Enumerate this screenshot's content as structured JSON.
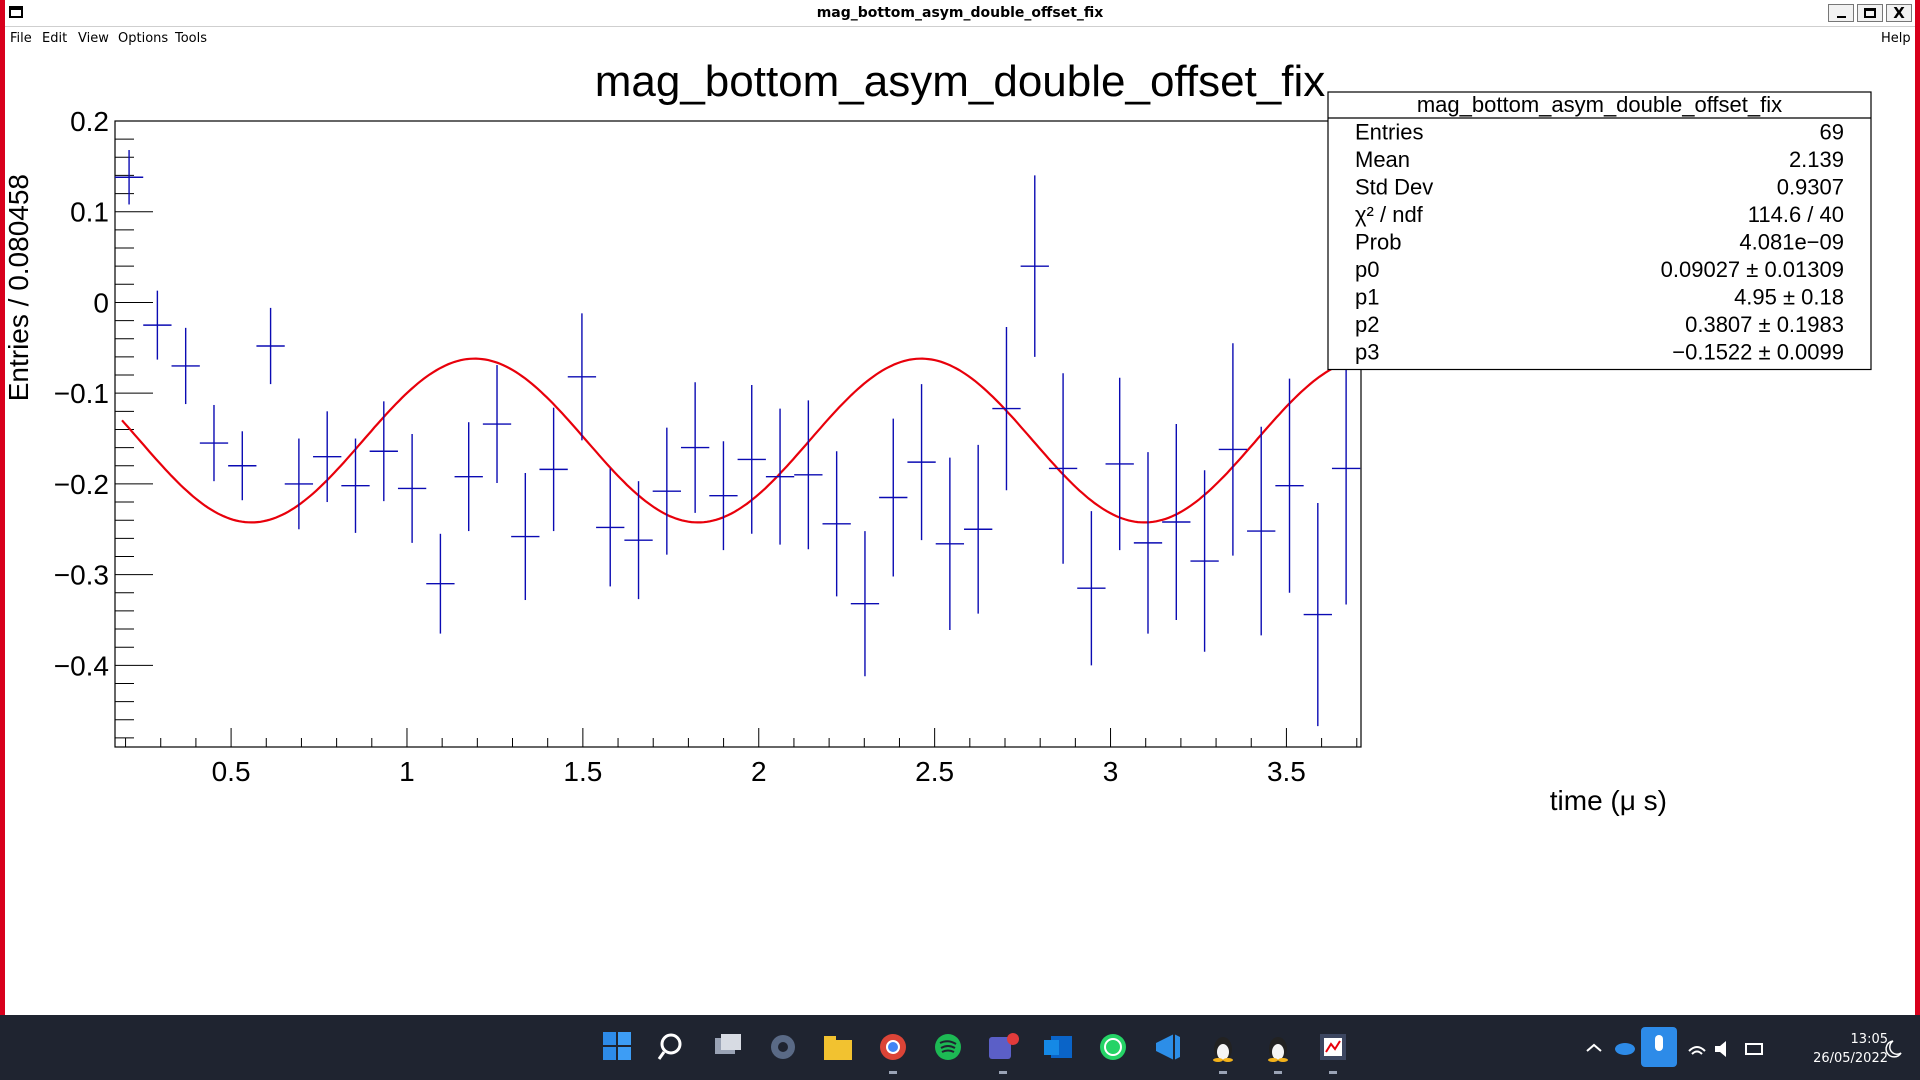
{
  "window": {
    "title": "mag_bottom_asym_double_offset_fix",
    "buttons": {
      "minimize": "_",
      "maximize": "□",
      "close": "X"
    }
  },
  "menu": {
    "file": "File",
    "edit": "Edit",
    "view": "View",
    "options": "Options",
    "tools": "Tools",
    "help": "Help"
  },
  "chart_data": {
    "type": "scatter",
    "title": "mag_bottom_asym_double_offset_fix",
    "xlabel": "time (μ s)",
    "ylabel": "Entries / 0.080458",
    "xlim": [
      0.17,
      3.712
    ],
    "ylim": [
      -0.49,
      0.2
    ],
    "x_ticks": [
      "0.5",
      "1",
      "1.5",
      "2",
      "2.5",
      "3",
      "3.5"
    ],
    "x_tick_values": [
      0.5,
      1,
      1.5,
      2,
      2.5,
      3,
      3.5
    ],
    "y_ticks": [
      "0.2",
      "0.1",
      "0",
      "−0.1",
      "−0.2",
      "−0.3",
      "−0.4"
    ],
    "y_tick_values": [
      0.2,
      0.1,
      0,
      -0.1,
      -0.2,
      -0.3,
      -0.4
    ],
    "grid": false,
    "bin_width": 0.080458,
    "series": [
      {
        "kind": "points_with_errors",
        "color": "#0b0bb3",
        "x_start": 0.21,
        "points": [
          [
            0.138,
            0.03
          ],
          [
            -0.025,
            0.038
          ],
          [
            -0.07,
            0.042
          ],
          [
            -0.155,
            0.042
          ],
          [
            -0.18,
            0.038
          ],
          [
            -0.048,
            0.042
          ],
          [
            -0.2,
            0.05
          ],
          [
            -0.17,
            0.05
          ],
          [
            -0.202,
            0.052
          ],
          [
            -0.164,
            0.055
          ],
          [
            -0.205,
            0.06
          ],
          [
            -0.31,
            0.055
          ],
          [
            -0.192,
            0.06
          ],
          [
            -0.134,
            0.065
          ],
          [
            -0.258,
            0.07
          ],
          [
            -0.184,
            0.068
          ],
          [
            -0.082,
            0.07
          ],
          [
            -0.248,
            0.065
          ],
          [
            -0.262,
            0.065
          ],
          [
            -0.208,
            0.07
          ],
          [
            -0.16,
            0.072
          ],
          [
            -0.213,
            0.06
          ],
          [
            -0.173,
            0.082
          ],
          [
            -0.192,
            0.075
          ],
          [
            -0.19,
            0.082
          ],
          [
            -0.244,
            0.08
          ],
          [
            -0.332,
            0.08
          ],
          [
            -0.215,
            0.087
          ],
          [
            -0.176,
            0.086
          ],
          [
            -0.266,
            0.095
          ],
          [
            -0.25,
            0.093
          ],
          [
            -0.117,
            0.09
          ],
          [
            0.04,
            0.1
          ],
          [
            -0.183,
            0.105
          ],
          [
            -0.315,
            0.085
          ],
          [
            -0.178,
            0.095
          ],
          [
            -0.265,
            0.1
          ],
          [
            -0.242,
            0.108
          ],
          [
            -0.285,
            0.1
          ],
          [
            -0.162,
            0.117
          ],
          [
            -0.252,
            0.115
          ],
          [
            -0.202,
            0.118
          ],
          [
            -0.344,
            0.123
          ],
          [
            -0.183,
            0.15
          ]
        ]
      },
      {
        "kind": "fit",
        "color": "#e8000b",
        "function": "p0*cos(p1*t + p2) + p3",
        "p0": 0.09027,
        "p1": 4.95,
        "p2": 0.3807,
        "p3": -0.1522,
        "x_range": [
          0.19,
          3.69
        ]
      }
    ],
    "stats_box": {
      "title": "mag_bottom_asym_double_offset_fix",
      "position": "top-right",
      "rows": [
        {
          "label": "Entries",
          "value": "69"
        },
        {
          "label": "Mean",
          "value": "2.139"
        },
        {
          "label": "Std Dev",
          "value": "0.9307"
        },
        {
          "label": "χ² / ndf",
          "value": "114.6 / 40"
        },
        {
          "label": "Prob",
          "value": "4.081e−09"
        },
        {
          "label": "p0",
          "value": "0.09027 ± 0.01309"
        },
        {
          "label": "p1",
          "value": "4.95 ± 0.18"
        },
        {
          "label": "p2",
          "value": "0.3807 ± 0.1983"
        },
        {
          "label": "p3",
          "value": "−0.1522 ± 0.0099"
        }
      ]
    }
  },
  "taskbar": {
    "icons": [
      "windows-start-icon",
      "search-icon",
      "task-view-icon",
      "settings-icon",
      "file-explorer-icon",
      "chrome-icon",
      "spotify-icon",
      "teams-icon",
      "outlook-icon",
      "whatsapp-icon",
      "vscode-icon",
      "linux-terminal-icon",
      "linux-terminal-icon",
      "root-app-icon"
    ],
    "time": "13:05",
    "date": "26/05/2022"
  }
}
